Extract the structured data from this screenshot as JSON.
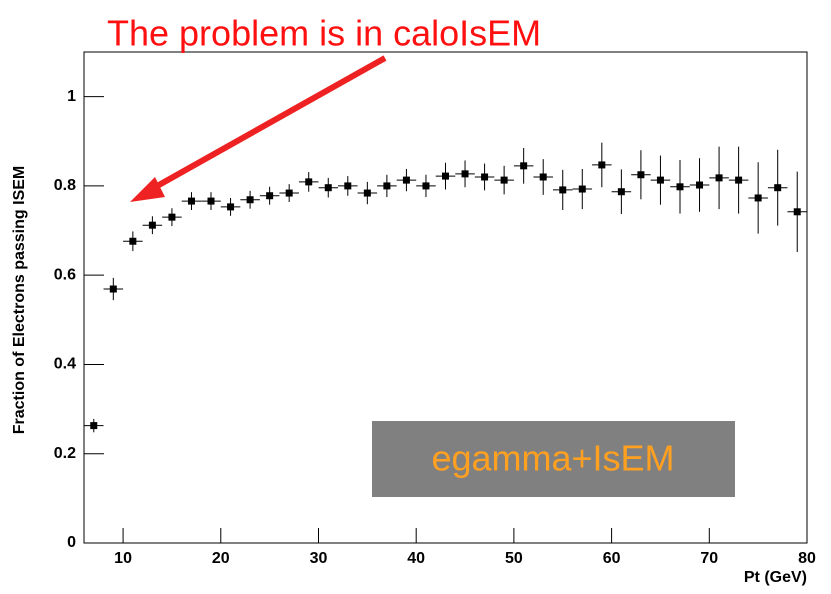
{
  "chart_data": {
    "type": "scatter",
    "title": "The problem is in caloIsEM",
    "annotations": [
      "egamma+IsEM"
    ],
    "x_label": "Pt (GeV)",
    "y_label": "Fraction of Electrons passing ISEM",
    "x": [
      7,
      9,
      11,
      13,
      15,
      17,
      19,
      21,
      23,
      25,
      27,
      29,
      31,
      33,
      35,
      37,
      39,
      41,
      43,
      45,
      47,
      49,
      51,
      53,
      55,
      57,
      59,
      61,
      63,
      65,
      67,
      69,
      71,
      73,
      75,
      77,
      79
    ],
    "series": [
      {
        "color": "#000000",
        "values": [
          0.263,
          0.569,
          0.676,
          0.712,
          0.73,
          0.766,
          0.766,
          0.753,
          0.769,
          0.778,
          0.784,
          0.809,
          0.796,
          0.8,
          0.784,
          0.8,
          0.813,
          0.8,
          0.822,
          0.827,
          0.82,
          0.813,
          0.845,
          0.82,
          0.791,
          0.793,
          0.847,
          0.787,
          0.825,
          0.813,
          0.798,
          0.802,
          0.818,
          0.813,
          0.773,
          0.796,
          0.742
        ],
        "errors": [
          0.015,
          0.025,
          0.022,
          0.02,
          0.02,
          0.02,
          0.02,
          0.02,
          0.02,
          0.02,
          0.02,
          0.022,
          0.022,
          0.022,
          0.025,
          0.025,
          0.025,
          0.025,
          0.03,
          0.03,
          0.03,
          0.032,
          0.04,
          0.04,
          0.045,
          0.045,
          0.05,
          0.05,
          0.055,
          0.055,
          0.06,
          0.06,
          0.07,
          0.075,
          0.08,
          0.085,
          0.09
        ],
        "x_error": 1
      }
    ],
    "xlim": [
      6,
      80
    ],
    "ylim": [
      0,
      1.1
    ],
    "xticks": [
      10,
      20,
      30,
      40,
      50,
      60,
      70,
      80
    ],
    "yticks": [
      0,
      0.2,
      0.4,
      0.6,
      0.8,
      1
    ]
  }
}
